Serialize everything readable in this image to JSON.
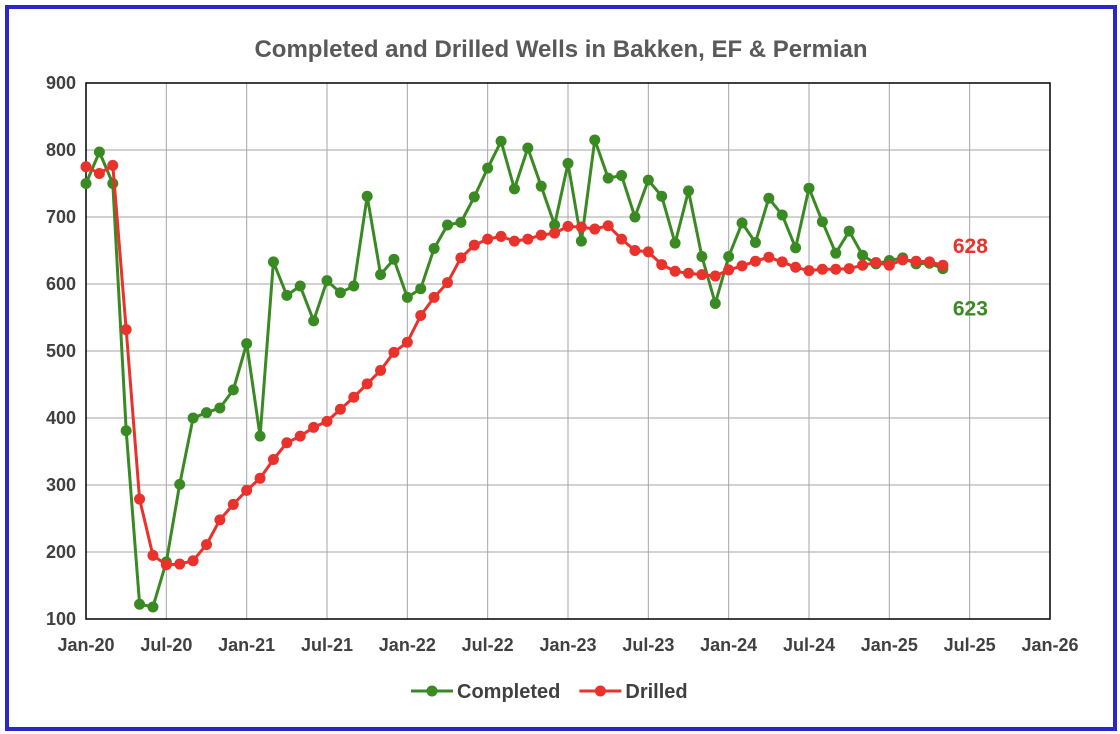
{
  "chart_data": {
    "type": "line",
    "title": "Completed and Drilled Wells in Bakken, EF & Permian",
    "xlabel": "",
    "ylabel": "",
    "ylim": [
      100,
      900
    ],
    "yticks": [
      100,
      200,
      300,
      400,
      500,
      600,
      700,
      800,
      900
    ],
    "x_tick_labels": [
      "Jan-20",
      "Jul-20",
      "Jan-21",
      "Jul-21",
      "Jan-22",
      "Jul-22",
      "Jan-23",
      "Jul-23",
      "Jan-24",
      "Jul-24",
      "Jan-25",
      "Jul-25",
      "Jan-26"
    ],
    "x_start": "Jan-20",
    "x_end": "Jan-26",
    "grid": true,
    "legend_position": "bottom",
    "series": [
      {
        "name": "Completed",
        "color": "#3a8a23",
        "end_label": "623",
        "values": [
          750,
          797,
          750,
          381,
          122,
          118,
          185,
          301,
          400,
          408,
          415,
          442,
          511,
          373,
          633,
          583,
          597,
          545,
          605,
          587,
          597,
          731,
          614,
          637,
          580,
          593,
          653,
          688,
          692,
          730,
          773,
          813,
          742,
          803,
          746,
          688,
          780,
          664,
          815,
          758,
          762,
          700,
          755,
          731,
          661,
          739,
          641,
          571,
          641,
          691,
          662,
          728,
          703,
          654,
          743,
          693,
          646,
          679,
          643,
          630,
          635,
          639,
          630,
          631,
          623
        ]
      },
      {
        "name": "Drilled",
        "color": "#e8322b",
        "end_label": "628",
        "values": [
          775,
          765,
          777,
          532,
          279,
          195,
          181,
          182,
          187,
          211,
          248,
          271,
          292,
          310,
          338,
          363,
          373,
          386,
          395,
          413,
          431,
          451,
          471,
          498,
          513,
          553,
          580,
          602,
          639,
          658,
          667,
          671,
          664,
          667,
          673,
          676,
          686,
          685,
          682,
          687,
          667,
          650,
          648,
          629,
          619,
          616,
          614,
          612,
          621,
          627,
          634,
          640,
          633,
          625,
          620,
          622,
          622,
          623,
          628,
          632,
          628,
          636,
          634,
          633,
          628
        ]
      }
    ]
  }
}
